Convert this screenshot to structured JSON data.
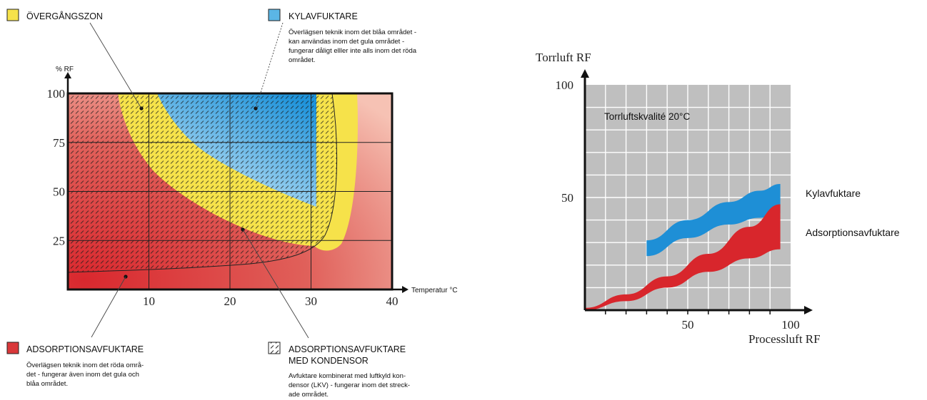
{
  "chart_data": [
    {
      "type": "area",
      "ylabel": "% RF",
      "xlabel": "Temperatur °C",
      "xlim": [
        0,
        40
      ],
      "ylim": [
        0,
        100
      ],
      "x_ticks": [
        "10",
        "20",
        "30",
        "40"
      ],
      "y_ticks": [
        "25",
        "50",
        "75",
        "100"
      ],
      "grid": true,
      "legend": [
        {
          "key": "overgangszon",
          "title": "ÖVERGÅNGSZON",
          "color": "#f6e24a",
          "desc": []
        },
        {
          "key": "kylavfuktare",
          "title": "KYLAVFUKTARE",
          "color": "#5bb6e6",
          "desc": [
            "Överlägsen teknik inom det blåa området -",
            "kan användas inom det  gula området -",
            "fungerar dåligt elller inte alls inom det röda",
            "området."
          ]
        },
        {
          "key": "adsorption",
          "title": "ADSORPTIONSAVFUKTARE",
          "color": "#d9383a",
          "desc": [
            "Överlägsen teknik inom det röda områ-",
            "det - fungerar även inom det gula och",
            "blåa området."
          ]
        },
        {
          "key": "kondensor",
          "title": "ADSORPTIONSAVFUKTARE",
          "title2": "MED KONDENSOR",
          "color": "#ffffff",
          "desc": [
            "Avfuktare kombinerat med luftkyld kon-",
            "densor (LKV) - fungerar inom det streck-",
            "ade området."
          ]
        }
      ]
    },
    {
      "type": "area",
      "title": "Torrluftskvalité 20°C",
      "ylabel": "Torrluft RF",
      "xlabel": "Processluft RF",
      "xlim": [
        0,
        100
      ],
      "ylim": [
        0,
        100
      ],
      "x_ticks": [
        "50",
        "100"
      ],
      "y_ticks": [
        "50",
        "100"
      ],
      "grid": true,
      "series": [
        {
          "name": "Kylavfuktare",
          "color": "#1e8fd6",
          "x": [
            30,
            50,
            70,
            85,
            95
          ],
          "lower": [
            24,
            32,
            38,
            41,
            43
          ],
          "upper": [
            31,
            40,
            48,
            53,
            56
          ]
        },
        {
          "name": "Adsorptionsavfuktare",
          "color": "#d8262c",
          "x": [
            0,
            20,
            40,
            60,
            80,
            95
          ],
          "lower": [
            0,
            4,
            10,
            17,
            23,
            27
          ],
          "upper": [
            1,
            7,
            15,
            25,
            37,
            47
          ]
        }
      ]
    }
  ]
}
